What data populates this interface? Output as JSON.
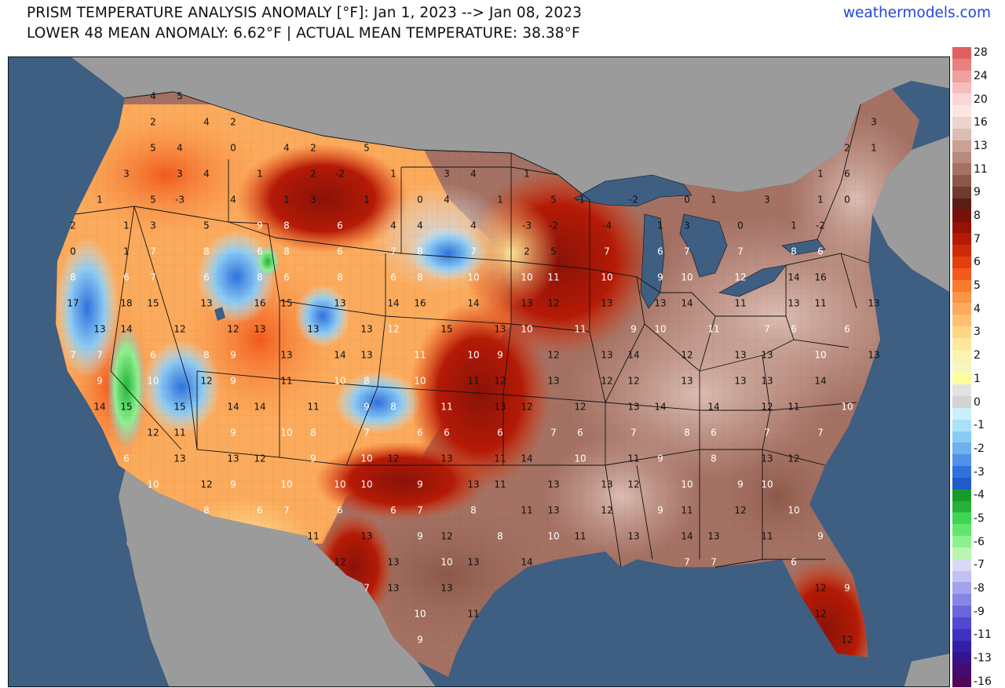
{
  "header": {
    "title": "PRISM TEMPERATURE ANALYSIS ANOMALY [°F]: Jan 1, 2023 --> Jan 08, 2023",
    "subtitle": "LOWER 48 MEAN ANOMALY: 6.62°F | ACTUAL MEAN TEMPERATURE: 38.38°F",
    "source": "weathermodels.com"
  },
  "legend": {
    "bins": [
      {
        "label": "28",
        "color": "#e06060"
      },
      {
        "label": "",
        "color": "#ea7f7f"
      },
      {
        "label": "24",
        "color": "#f1a0a0"
      },
      {
        "label": "",
        "color": "#f6bdbd"
      },
      {
        "label": "20",
        "color": "#fad6d6"
      },
      {
        "label": "",
        "color": "#fbe6e4"
      },
      {
        "label": "16",
        "color": "#ecd3cc"
      },
      {
        "label": "",
        "color": "#dcbdb3"
      },
      {
        "label": "13",
        "color": "#c9a295"
      },
      {
        "label": "",
        "color": "#b88a7b"
      },
      {
        "label": "11",
        "color": "#a47163"
      },
      {
        "label": "",
        "color": "#8c5848"
      },
      {
        "label": "9",
        "color": "#6d3c2e"
      },
      {
        "label": "",
        "color": "#5a1e14"
      },
      {
        "label": "8",
        "color": "#780f08"
      },
      {
        "label": "",
        "color": "#961206"
      },
      {
        "label": "7",
        "color": "#b51a06"
      },
      {
        "label": "",
        "color": "#cf2a08"
      },
      {
        "label": "6",
        "color": "#e23e0e"
      },
      {
        "label": "",
        "color": "#f25a1c"
      },
      {
        "label": "5",
        "color": "#fa7a2c"
      },
      {
        "label": "",
        "color": "#fb9446"
      },
      {
        "label": "4",
        "color": "#fcab5c"
      },
      {
        "label": "",
        "color": "#fdc070"
      },
      {
        "label": "3",
        "color": "#fdd685"
      },
      {
        "label": "",
        "color": "#fde79a"
      },
      {
        "label": "2",
        "color": "#fbf3ae"
      },
      {
        "label": "",
        "color": "#f6f7c0"
      },
      {
        "label": "1",
        "color": "#fdfd9c"
      },
      {
        "label": "",
        "color": "#e2e2e2"
      },
      {
        "label": "0",
        "color": "#d3d3d3"
      },
      {
        "label": "",
        "color": "#c9f0fa"
      },
      {
        "label": "-1",
        "color": "#a9e1f8"
      },
      {
        "label": "",
        "color": "#8bcaf4"
      },
      {
        "label": "-2",
        "color": "#6fb0ef"
      },
      {
        "label": "",
        "color": "#4f92e8"
      },
      {
        "label": "-3",
        "color": "#2f72dd"
      },
      {
        "label": "",
        "color": "#1f5bc9"
      },
      {
        "label": "-4",
        "color": "#189b2a"
      },
      {
        "label": "",
        "color": "#25b33a"
      },
      {
        "label": "-5",
        "color": "#3ed454"
      },
      {
        "label": "",
        "color": "#62e76e"
      },
      {
        "label": "-6",
        "color": "#8ef18f"
      },
      {
        "label": "",
        "color": "#b6f6b2"
      },
      {
        "label": "-7",
        "color": "#d9d9f6"
      },
      {
        "label": "",
        "color": "#c1c1f3"
      },
      {
        "label": "-8",
        "color": "#a3a3ef"
      },
      {
        "label": "",
        "color": "#8686e8"
      },
      {
        "label": "-9",
        "color": "#6a66dd"
      },
      {
        "label": "",
        "color": "#5247d0"
      },
      {
        "label": "-11",
        "color": "#3e30c0"
      },
      {
        "label": "",
        "color": "#3320a8"
      },
      {
        "label": "-13",
        "color": "#34148e"
      },
      {
        "label": "",
        "color": "#420c70"
      },
      {
        "label": "-16",
        "color": "#520658"
      }
    ]
  },
  "map": {
    "colors": {
      "ocean": "#3e5e82",
      "land_other": "#9b9b9b",
      "lakes": "#3e5e82",
      "border": "#111111"
    },
    "labels": [
      {
        "t": "4",
        "c": "d"
      },
      {
        "t": "5",
        "c": "d"
      },
      {
        "t": "2",
        "c": "d"
      },
      {
        "t": "4",
        "c": "d"
      },
      {
        "t": "2",
        "c": "d"
      },
      {
        "t": "3",
        "c": "d"
      },
      {
        "t": "5",
        "c": "d"
      },
      {
        "t": "4",
        "c": "d"
      },
      {
        "t": "0",
        "c": "d"
      },
      {
        "t": "4",
        "c": "d"
      },
      {
        "t": "2",
        "c": "d"
      },
      {
        "t": "5",
        "c": "d"
      },
      {
        "t": "2",
        "c": "d"
      },
      {
        "t": "1",
        "c": "d"
      },
      {
        "t": "3",
        "c": "d"
      },
      {
        "t": "3",
        "c": "d"
      },
      {
        "t": "4",
        "c": "d"
      },
      {
        "t": "1",
        "c": "d"
      },
      {
        "t": "2",
        "c": "d"
      },
      {
        "t": "-2",
        "c": "d"
      },
      {
        "t": "1",
        "c": "d"
      },
      {
        "t": "3",
        "c": "d"
      },
      {
        "t": "4",
        "c": "d"
      },
      {
        "t": "1",
        "c": "d"
      },
      {
        "t": "1",
        "c": "d"
      },
      {
        "t": "6",
        "c": "d"
      },
      {
        "t": "1",
        "c": "d"
      },
      {
        "t": "5",
        "c": "d"
      },
      {
        "t": "-3",
        "c": "d"
      },
      {
        "t": "4",
        "c": "d"
      },
      {
        "t": "1",
        "c": "d"
      },
      {
        "t": "3",
        "c": "d"
      },
      {
        "t": "1",
        "c": "d"
      },
      {
        "t": "0",
        "c": "d"
      },
      {
        "t": "4",
        "c": "d"
      },
      {
        "t": "1",
        "c": "d"
      },
      {
        "t": "5",
        "c": "d"
      },
      {
        "t": "-1",
        "c": "d"
      },
      {
        "t": "-2",
        "c": "d"
      },
      {
        "t": "0",
        "c": "d"
      },
      {
        "t": "1",
        "c": "d"
      },
      {
        "t": "3",
        "c": "d"
      },
      {
        "t": "1",
        "c": "d"
      },
      {
        "t": "0",
        "c": "d"
      },
      {
        "t": "2",
        "c": "d"
      },
      {
        "t": "1",
        "c": "d"
      },
      {
        "t": "3",
        "c": "d"
      },
      {
        "t": "5",
        "c": "d"
      },
      {
        "t": "9",
        "c": "l"
      },
      {
        "t": "8",
        "c": "l"
      },
      {
        "t": "6",
        "c": "l"
      },
      {
        "t": "4",
        "c": "d"
      },
      {
        "t": "4",
        "c": "d"
      },
      {
        "t": "4",
        "c": "d"
      },
      {
        "t": "-3",
        "c": "d"
      },
      {
        "t": "-2",
        "c": "d"
      },
      {
        "t": "-4",
        "c": "d"
      },
      {
        "t": "1",
        "c": "d"
      },
      {
        "t": "3",
        "c": "d"
      },
      {
        "t": "0",
        "c": "d"
      },
      {
        "t": "1",
        "c": "d"
      },
      {
        "t": "-2",
        "c": "d"
      },
      {
        "t": "0",
        "c": "d"
      },
      {
        "t": "1",
        "c": "d"
      },
      {
        "t": "7",
        "c": "l"
      },
      {
        "t": "8",
        "c": "l"
      },
      {
        "t": "6",
        "c": "l"
      },
      {
        "t": "8",
        "c": "l"
      },
      {
        "t": "6",
        "c": "l"
      },
      {
        "t": "7",
        "c": "l"
      },
      {
        "t": "8",
        "c": "l"
      },
      {
        "t": "7",
        "c": "l"
      },
      {
        "t": "2",
        "c": "d"
      },
      {
        "t": "5",
        "c": "d"
      },
      {
        "t": "7",
        "c": "l"
      },
      {
        "t": "6",
        "c": "l"
      },
      {
        "t": "7",
        "c": "l"
      },
      {
        "t": "7",
        "c": "l"
      },
      {
        "t": "8",
        "c": "l"
      },
      {
        "t": "6",
        "c": "l"
      },
      {
        "t": "8",
        "c": "l"
      },
      {
        "t": "6",
        "c": "l"
      },
      {
        "t": "7",
        "c": "l"
      },
      {
        "t": "6",
        "c": "l"
      },
      {
        "t": "8",
        "c": "l"
      },
      {
        "t": "6",
        "c": "l"
      },
      {
        "t": "8",
        "c": "l"
      },
      {
        "t": "6",
        "c": "l"
      },
      {
        "t": "8",
        "c": "l"
      },
      {
        "t": "10",
        "c": "l"
      },
      {
        "t": "10",
        "c": "l"
      },
      {
        "t": "11",
        "c": "l"
      },
      {
        "t": "10",
        "c": "l"
      },
      {
        "t": "9",
        "c": "l"
      },
      {
        "t": "10",
        "c": "l"
      },
      {
        "t": "12",
        "c": "l"
      },
      {
        "t": "14",
        "c": "d"
      },
      {
        "t": "16",
        "c": "d"
      },
      {
        "t": "17",
        "c": "d"
      },
      {
        "t": "18",
        "c": "d"
      },
      {
        "t": "15",
        "c": "d"
      },
      {
        "t": "13",
        "c": "d"
      },
      {
        "t": "16",
        "c": "d"
      },
      {
        "t": "15",
        "c": "d"
      },
      {
        "t": "13",
        "c": "d"
      },
      {
        "t": "14",
        "c": "d"
      },
      {
        "t": "16",
        "c": "d"
      },
      {
        "t": "14",
        "c": "d"
      },
      {
        "t": "13",
        "c": "d"
      },
      {
        "t": "12",
        "c": "d"
      },
      {
        "t": "13",
        "c": "d"
      },
      {
        "t": "13",
        "c": "d"
      },
      {
        "t": "14",
        "c": "d"
      },
      {
        "t": "11",
        "c": "d"
      },
      {
        "t": "13",
        "c": "d"
      },
      {
        "t": "11",
        "c": "d"
      },
      {
        "t": "13",
        "c": "d"
      },
      {
        "t": "13",
        "c": "d"
      },
      {
        "t": "14",
        "c": "d"
      },
      {
        "t": "12",
        "c": "d"
      },
      {
        "t": "12",
        "c": "d"
      },
      {
        "t": "13",
        "c": "d"
      },
      {
        "t": "13",
        "c": "d"
      },
      {
        "t": "13",
        "c": "d"
      },
      {
        "t": "12",
        "c": "l"
      },
      {
        "t": "15",
        "c": "d"
      },
      {
        "t": "13",
        "c": "d"
      },
      {
        "t": "10",
        "c": "l"
      },
      {
        "t": "11",
        "c": "l"
      },
      {
        "t": "9",
        "c": "l"
      },
      {
        "t": "10",
        "c": "l"
      },
      {
        "t": "11",
        "c": "l"
      },
      {
        "t": "7",
        "c": "l"
      },
      {
        "t": "6",
        "c": "l"
      },
      {
        "t": "6",
        "c": "l"
      },
      {
        "t": "7",
        "c": "l"
      },
      {
        "t": "7",
        "c": "l"
      },
      {
        "t": "6",
        "c": "l"
      },
      {
        "t": "8",
        "c": "l"
      },
      {
        "t": "9",
        "c": "l"
      },
      {
        "t": "13",
        "c": "d"
      },
      {
        "t": "14",
        "c": "d"
      },
      {
        "t": "13",
        "c": "d"
      },
      {
        "t": "11",
        "c": "l"
      },
      {
        "t": "10",
        "c": "l"
      },
      {
        "t": "9",
        "c": "l"
      },
      {
        "t": "12",
        "c": "d"
      },
      {
        "t": "13",
        "c": "d"
      },
      {
        "t": "14",
        "c": "d"
      },
      {
        "t": "12",
        "c": "d"
      },
      {
        "t": "13",
        "c": "d"
      },
      {
        "t": "13",
        "c": "d"
      },
      {
        "t": "10",
        "c": "l"
      },
      {
        "t": "13",
        "c": "d"
      },
      {
        "t": "9",
        "c": "l"
      },
      {
        "t": "10",
        "c": "l"
      },
      {
        "t": "12",
        "c": "d"
      },
      {
        "t": "9",
        "c": "l"
      },
      {
        "t": "11",
        "c": "d"
      },
      {
        "t": "10",
        "c": "l"
      },
      {
        "t": "8",
        "c": "l"
      },
      {
        "t": "10",
        "c": "l"
      },
      {
        "t": "11",
        "c": "d"
      },
      {
        "t": "12",
        "c": "d"
      },
      {
        "t": "13",
        "c": "d"
      },
      {
        "t": "12",
        "c": "d"
      },
      {
        "t": "12",
        "c": "d"
      },
      {
        "t": "13",
        "c": "d"
      },
      {
        "t": "13",
        "c": "d"
      },
      {
        "t": "13",
        "c": "d"
      },
      {
        "t": "14",
        "c": "d"
      },
      {
        "t": "14",
        "c": "d"
      },
      {
        "t": "15",
        "c": "d"
      },
      {
        "t": "15",
        "c": "d"
      },
      {
        "t": "14",
        "c": "d"
      },
      {
        "t": "14",
        "c": "d"
      },
      {
        "t": "11",
        "c": "d"
      },
      {
        "t": "9",
        "c": "l"
      },
      {
        "t": "8",
        "c": "l"
      },
      {
        "t": "11",
        "c": "l"
      },
      {
        "t": "13",
        "c": "d"
      },
      {
        "t": "12",
        "c": "d"
      },
      {
        "t": "12",
        "c": "d"
      },
      {
        "t": "13",
        "c": "d"
      },
      {
        "t": "14",
        "c": "d"
      },
      {
        "t": "14",
        "c": "d"
      },
      {
        "t": "12",
        "c": "d"
      },
      {
        "t": "11",
        "c": "d"
      },
      {
        "t": "10",
        "c": "l"
      },
      {
        "t": "12",
        "c": "d"
      },
      {
        "t": "11",
        "c": "d"
      },
      {
        "t": "9",
        "c": "l"
      },
      {
        "t": "10",
        "c": "l"
      },
      {
        "t": "8",
        "c": "l"
      },
      {
        "t": "7",
        "c": "l"
      },
      {
        "t": "6",
        "c": "l"
      },
      {
        "t": "6",
        "c": "l"
      },
      {
        "t": "6",
        "c": "l"
      },
      {
        "t": "7",
        "c": "l"
      },
      {
        "t": "6",
        "c": "l"
      },
      {
        "t": "7",
        "c": "l"
      },
      {
        "t": "8",
        "c": "l"
      },
      {
        "t": "6",
        "c": "l"
      },
      {
        "t": "7",
        "c": "l"
      },
      {
        "t": "7",
        "c": "l"
      },
      {
        "t": "6",
        "c": "l"
      },
      {
        "t": "13",
        "c": "d"
      },
      {
        "t": "13",
        "c": "d"
      },
      {
        "t": "12",
        "c": "d"
      },
      {
        "t": "9",
        "c": "l"
      },
      {
        "t": "10",
        "c": "l"
      },
      {
        "t": "12",
        "c": "d"
      },
      {
        "t": "13",
        "c": "d"
      },
      {
        "t": "11",
        "c": "d"
      },
      {
        "t": "14",
        "c": "d"
      },
      {
        "t": "10",
        "c": "l"
      },
      {
        "t": "11",
        "c": "d"
      },
      {
        "t": "9",
        "c": "l"
      },
      {
        "t": "8",
        "c": "l"
      },
      {
        "t": "13",
        "c": "d"
      },
      {
        "t": "12",
        "c": "d"
      },
      {
        "t": "10",
        "c": "l"
      },
      {
        "t": "12",
        "c": "d"
      },
      {
        "t": "9",
        "c": "l"
      },
      {
        "t": "10",
        "c": "l"
      },
      {
        "t": "10",
        "c": "l"
      },
      {
        "t": "10",
        "c": "l"
      },
      {
        "t": "9",
        "c": "l"
      },
      {
        "t": "13",
        "c": "d"
      },
      {
        "t": "11",
        "c": "d"
      },
      {
        "t": "13",
        "c": "d"
      },
      {
        "t": "13",
        "c": "d"
      },
      {
        "t": "12",
        "c": "d"
      },
      {
        "t": "10",
        "c": "l"
      },
      {
        "t": "9",
        "c": "l"
      },
      {
        "t": "10",
        "c": "l"
      },
      {
        "t": "8",
        "c": "l"
      },
      {
        "t": "6",
        "c": "l"
      },
      {
        "t": "7",
        "c": "l"
      },
      {
        "t": "6",
        "c": "l"
      },
      {
        "t": "6",
        "c": "l"
      },
      {
        "t": "7",
        "c": "l"
      },
      {
        "t": "8",
        "c": "l"
      },
      {
        "t": "11",
        "c": "d"
      },
      {
        "t": "13",
        "c": "d"
      },
      {
        "t": "12",
        "c": "d"
      },
      {
        "t": "9",
        "c": "l"
      },
      {
        "t": "11",
        "c": "d"
      },
      {
        "t": "12",
        "c": "d"
      },
      {
        "t": "10",
        "c": "l"
      },
      {
        "t": "11",
        "c": "d"
      },
      {
        "t": "13",
        "c": "d"
      },
      {
        "t": "9",
        "c": "l"
      },
      {
        "t": "12",
        "c": "d"
      },
      {
        "t": "8",
        "c": "l"
      },
      {
        "t": "10",
        "c": "l"
      },
      {
        "t": "11",
        "c": "d"
      },
      {
        "t": "13",
        "c": "d"
      },
      {
        "t": "14",
        "c": "d"
      },
      {
        "t": "13",
        "c": "d"
      },
      {
        "t": "11",
        "c": "d"
      },
      {
        "t": "9",
        "c": "l"
      },
      {
        "t": "12",
        "c": "d"
      },
      {
        "t": "13",
        "c": "d"
      },
      {
        "t": "10",
        "c": "l"
      },
      {
        "t": "13",
        "c": "d"
      },
      {
        "t": "14",
        "c": "d"
      },
      {
        "t": "7",
        "c": "l"
      },
      {
        "t": "7",
        "c": "l"
      },
      {
        "t": "6",
        "c": "l"
      },
      {
        "t": "7",
        "c": "l"
      },
      {
        "t": "13",
        "c": "d"
      },
      {
        "t": "13",
        "c": "d"
      },
      {
        "t": "12",
        "c": "d"
      },
      {
        "t": "9",
        "c": "l"
      },
      {
        "t": "10",
        "c": "l"
      },
      {
        "t": "11",
        "c": "d"
      },
      {
        "t": "12",
        "c": "d"
      },
      {
        "t": "9",
        "c": "l"
      },
      {
        "t": "12",
        "c": "d"
      }
    ]
  }
}
